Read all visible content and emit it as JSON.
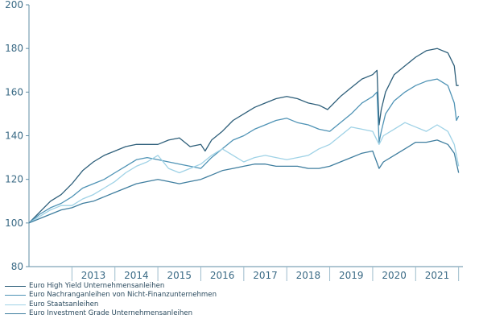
{
  "chart_data": {
    "type": "line",
    "title": "",
    "xlabel": "",
    "ylabel": "",
    "ylim": [
      80,
      200
    ],
    "yticks": [
      "80",
      "100",
      "120",
      "140",
      "160",
      "180",
      "200"
    ],
    "xticks": [
      "2013",
      "2014",
      "2015",
      "2016",
      "2017",
      "2018",
      "2019",
      "2020",
      "2021"
    ],
    "xlim": [
      2012.0,
      2022.1
    ],
    "grid": false,
    "legend_position": "bottom-left",
    "series": [
      {
        "name": "Euro High Yield Unternehmensanleihen",
        "color": "#2e5f7a",
        "x": [
          2012.0,
          2012.25,
          2012.5,
          2012.75,
          2013.0,
          2013.25,
          2013.5,
          2013.75,
          2014.0,
          2014.25,
          2014.5,
          2014.75,
          2015.0,
          2015.25,
          2015.5,
          2015.75,
          2016.0,
          2016.1,
          2016.25,
          2016.5,
          2016.75,
          2017.0,
          2017.25,
          2017.5,
          2017.75,
          2018.0,
          2018.25,
          2018.5,
          2018.75,
          2018.95,
          2019.25,
          2019.5,
          2019.75,
          2020.0,
          2020.1,
          2020.15,
          2020.2,
          2020.3,
          2020.5,
          2020.75,
          2021.0,
          2021.25,
          2021.5,
          2021.75,
          2021.9,
          2021.95,
          2022.0
        ],
        "y": [
          100,
          105,
          110,
          113,
          118,
          124,
          128,
          131,
          133,
          135,
          136,
          136,
          136,
          138,
          139,
          135,
          136,
          133,
          138,
          142,
          147,
          150,
          153,
          155,
          157,
          158,
          157,
          155,
          154,
          152,
          158,
          162,
          166,
          168,
          170,
          145,
          152,
          160,
          168,
          172,
          176,
          179,
          180,
          178,
          172,
          163,
          163
        ]
      },
      {
        "name": "Euro Nachranganleihen von Nicht-Finanzunternehmen",
        "color": "#4f93b5",
        "x": [
          2012.0,
          2012.25,
          2012.5,
          2012.75,
          2013.0,
          2013.25,
          2013.5,
          2013.75,
          2014.0,
          2014.25,
          2014.5,
          2014.75,
          2015.0,
          2015.25,
          2015.5,
          2015.75,
          2016.0,
          2016.25,
          2016.5,
          2016.75,
          2017.0,
          2017.25,
          2017.5,
          2017.75,
          2018.0,
          2018.25,
          2018.5,
          2018.75,
          2019.0,
          2019.25,
          2019.5,
          2019.75,
          2020.0,
          2020.1,
          2020.15,
          2020.2,
          2020.3,
          2020.5,
          2020.75,
          2021.0,
          2021.25,
          2021.5,
          2021.75,
          2021.9,
          2021.95,
          2022.0
        ],
        "y": [
          100,
          104,
          107,
          109,
          112,
          116,
          118,
          120,
          123,
          126,
          129,
          130,
          129,
          128,
          127,
          126,
          125,
          130,
          134,
          138,
          140,
          143,
          145,
          147,
          148,
          146,
          145,
          143,
          142,
          146,
          150,
          155,
          158,
          160,
          137,
          142,
          150,
          156,
          160,
          163,
          165,
          166,
          163,
          155,
          147,
          149
        ]
      },
      {
        "name": "Euro Staatsanleihen",
        "color": "#9fd2e6",
        "x": [
          2012.0,
          2012.25,
          2012.5,
          2012.75,
          2013.0,
          2013.25,
          2013.5,
          2013.75,
          2014.0,
          2014.25,
          2014.5,
          2014.75,
          2015.0,
          2015.25,
          2015.5,
          2015.75,
          2016.0,
          2016.25,
          2016.5,
          2016.75,
          2017.0,
          2017.25,
          2017.5,
          2017.75,
          2018.0,
          2018.25,
          2018.5,
          2018.75,
          2019.0,
          2019.25,
          2019.5,
          2019.75,
          2020.0,
          2020.15,
          2020.25,
          2020.5,
          2020.75,
          2021.0,
          2021.25,
          2021.5,
          2021.75,
          2021.9,
          2022.0
        ],
        "y": [
          100,
          103,
          106,
          108,
          108,
          111,
          113,
          116,
          119,
          123,
          126,
          128,
          131,
          125,
          123,
          125,
          127,
          131,
          134,
          131,
          128,
          130,
          131,
          130,
          129,
          130,
          131,
          134,
          136,
          140,
          144,
          143,
          142,
          136,
          140,
          143,
          146,
          144,
          142,
          145,
          142,
          136,
          126
        ]
      },
      {
        "name": "Euro Investment Grade Unternehmensanleihen",
        "color": "#3f7e9f",
        "x": [
          2012.0,
          2012.25,
          2012.5,
          2012.75,
          2013.0,
          2013.25,
          2013.5,
          2013.75,
          2014.0,
          2014.25,
          2014.5,
          2014.75,
          2015.0,
          2015.25,
          2015.5,
          2015.75,
          2016.0,
          2016.25,
          2016.5,
          2016.75,
          2017.0,
          2017.25,
          2017.5,
          2017.75,
          2018.0,
          2018.25,
          2018.5,
          2018.75,
          2019.0,
          2019.25,
          2019.5,
          2019.75,
          2020.0,
          2020.15,
          2020.25,
          2020.5,
          2020.75,
          2021.0,
          2021.25,
          2021.5,
          2021.75,
          2021.9,
          2022.0
        ],
        "y": [
          100,
          102,
          104,
          106,
          107,
          109,
          110,
          112,
          114,
          116,
          118,
          119,
          120,
          119,
          118,
          119,
          120,
          122,
          124,
          125,
          126,
          127,
          127,
          126,
          126,
          126,
          125,
          125,
          126,
          128,
          130,
          132,
          133,
          125,
          128,
          131,
          134,
          137,
          137,
          138,
          136,
          132,
          123
        ]
      }
    ]
  }
}
